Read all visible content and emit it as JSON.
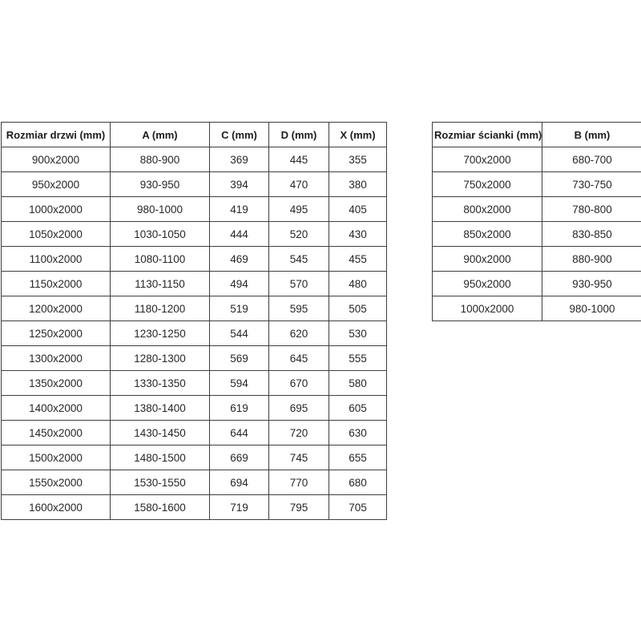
{
  "page": {
    "background": "#ffffff",
    "border_color": "#3f3f3f",
    "text_color": "#262626"
  },
  "doors_table": {
    "headers": [
      "Rozmiar drzwi (mm)",
      "A (mm)",
      "C (mm)",
      "D (mm)",
      "X (mm)"
    ],
    "rows": [
      [
        "900x2000",
        "880-900",
        "369",
        "445",
        "355"
      ],
      [
        "950x2000",
        "930-950",
        "394",
        "470",
        "380"
      ],
      [
        "1000x2000",
        "980-1000",
        "419",
        "495",
        "405"
      ],
      [
        "1050x2000",
        "1030-1050",
        "444",
        "520",
        "430"
      ],
      [
        "1100x2000",
        "1080-1100",
        "469",
        "545",
        "455"
      ],
      [
        "1150x2000",
        "1130-1150",
        "494",
        "570",
        "480"
      ],
      [
        "1200x2000",
        "1180-1200",
        "519",
        "595",
        "505"
      ],
      [
        "1250x2000",
        "1230-1250",
        "544",
        "620",
        "530"
      ],
      [
        "1300x2000",
        "1280-1300",
        "569",
        "645",
        "555"
      ],
      [
        "1350x2000",
        "1330-1350",
        "594",
        "670",
        "580"
      ],
      [
        "1400x2000",
        "1380-1400",
        "619",
        "695",
        "605"
      ],
      [
        "1450x2000",
        "1430-1450",
        "644",
        "720",
        "630"
      ],
      [
        "1500x2000",
        "1480-1500",
        "669",
        "745",
        "655"
      ],
      [
        "1550x2000",
        "1530-1550",
        "694",
        "770",
        "680"
      ],
      [
        "1600x2000",
        "1580-1600",
        "719",
        "795",
        "705"
      ]
    ]
  },
  "walls_table": {
    "headers": [
      "Rozmiar ścianki (mm)",
      "B (mm)"
    ],
    "rows": [
      [
        "700x2000",
        "680-700"
      ],
      [
        "750x2000",
        "730-750"
      ],
      [
        "800x2000",
        "780-800"
      ],
      [
        "850x2000",
        "830-850"
      ],
      [
        "900x2000",
        "880-900"
      ],
      [
        "950x2000",
        "930-950"
      ],
      [
        "1000x2000",
        "980-1000"
      ]
    ]
  }
}
